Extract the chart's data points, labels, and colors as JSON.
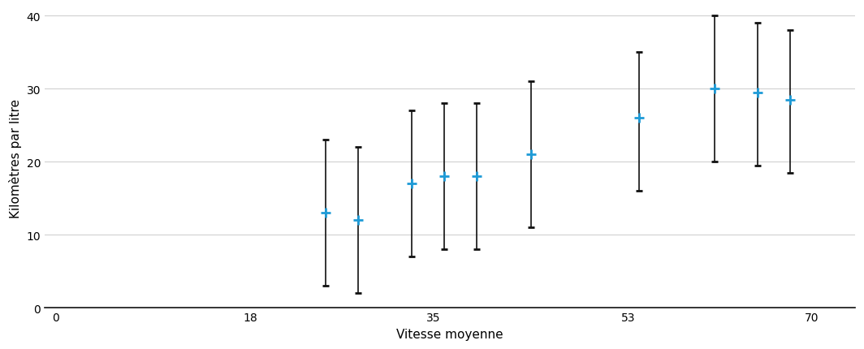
{
  "x": [
    25,
    28,
    33,
    36,
    39,
    44,
    54,
    61,
    65,
    68
  ],
  "y": [
    13,
    12,
    17,
    18,
    18,
    21,
    26,
    30,
    29.5,
    28.5
  ],
  "y_err_pos": [
    10,
    10,
    10,
    10,
    10,
    10,
    9,
    10,
    9.5,
    9.5
  ],
  "y_err_neg": [
    10,
    10,
    10,
    10,
    10,
    10,
    10,
    10,
    10,
    10
  ],
  "x_ticks": [
    0,
    18,
    35,
    53,
    70
  ],
  "y_ticks": [
    0,
    10,
    20,
    30,
    40
  ],
  "xlim": [
    -1,
    74
  ],
  "ylim": [
    0,
    41
  ],
  "xlabel": "Vitesse moyenne",
  "ylabel": "Kilomètres par litre",
  "marker_color": "#1E9BD7",
  "errorbar_color": "#111111",
  "background_color": "#ffffff",
  "grid_color": "#d0d0d0",
  "capsize": 3,
  "marker_size": 9,
  "marker_linewidth": 2,
  "elinewidth": 1.2,
  "capthick": 1.2
}
